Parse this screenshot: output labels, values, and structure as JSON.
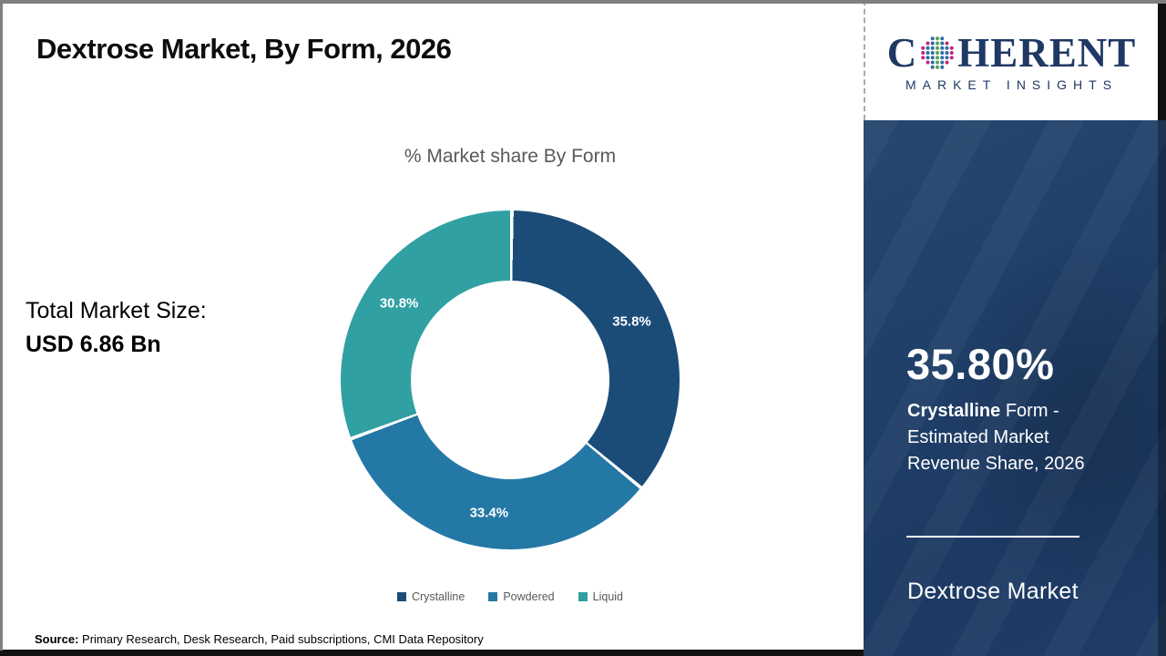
{
  "header": {
    "title": "Dextrose Market, By Form, 2026",
    "logo": {
      "brand_first_letter": "C",
      "brand_rest": "HERENT",
      "tagline": "MARKET INSIGHTS",
      "brand_color": "#1f3864"
    }
  },
  "main": {
    "total_label": "Total Market Size:",
    "total_value": "USD 6.86 Bn",
    "source_label": "Source:",
    "source_text": " Primary Research, Desk Research, Paid subscriptions, CMI Data Repository"
  },
  "chart_data": {
    "type": "pie",
    "subtype": "donut",
    "title": "% Market share By Form",
    "categories": [
      "Crystalline",
      "Powdered",
      "Liquid"
    ],
    "values": [
      35.8,
      33.4,
      30.8
    ],
    "labels": [
      "35.8%",
      "33.4%",
      "30.8%"
    ],
    "colors": [
      "#1B4C77",
      "#2478A6",
      "#31A0A2"
    ],
    "start_angle_deg": 0,
    "direction": "clockwise",
    "legend_position": "bottom",
    "label_color": "#ffffff"
  },
  "sidebar": {
    "stat_value": "35.80%",
    "stat_label_bold": "Crystalline",
    "stat_label_rest": " Form - Estimated Market Revenue Share, 2026",
    "footer_title": "Dextrose Market",
    "background_color": "#20406A"
  }
}
